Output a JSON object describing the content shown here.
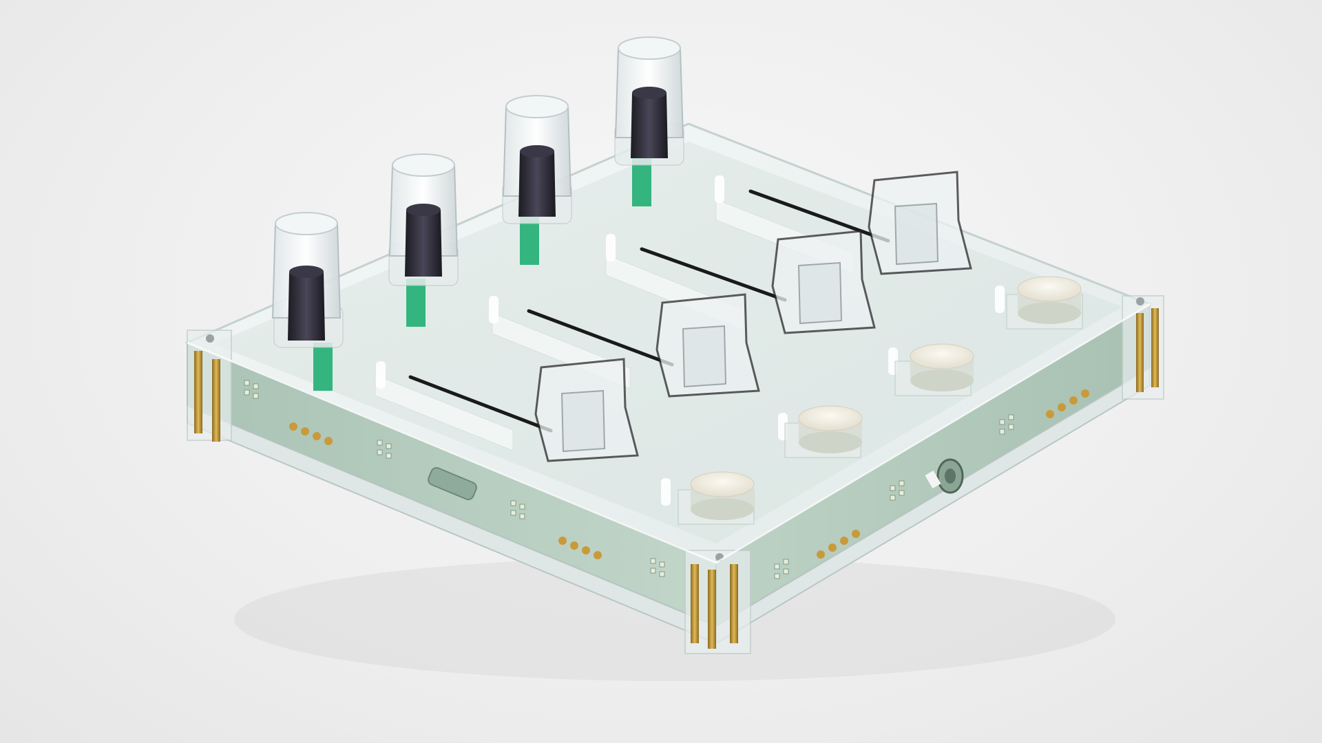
{
  "scene": {
    "subject": "clear-acrylic-midi-controller-render",
    "knob_count": 4,
    "fader_count": 4,
    "button_count": 4
  },
  "colors": {
    "background": "#efefef",
    "acrylic": "#e4eeee",
    "pcb": "#b5cbbd",
    "knob_cap": "#2b2b30",
    "encoder_board": "#34b57f",
    "button_cap": "#f1eee4",
    "gold_contact": "#c99a3a",
    "fader_rail": "#1a1a1a"
  }
}
